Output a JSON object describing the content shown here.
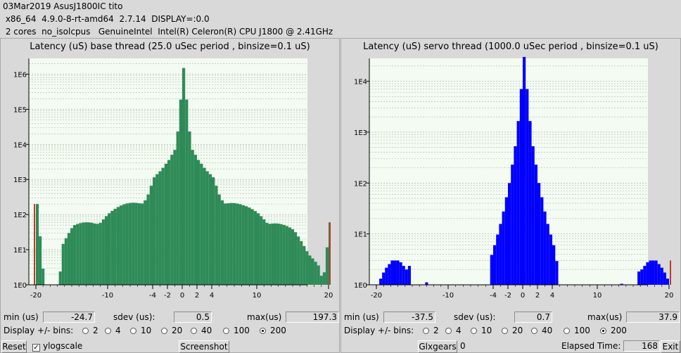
{
  "header": {
    "line1": "03Mar2019 AsusJ1800IC tito",
    "line2": " x86_64  4.9.0-8-rt-amd64  2.7.14  DISPLAY=:0.0",
    "line3": " 2 cores  no_isolcpus   GenuineIntel  Intel(R) Celeron(R) CPU J1800 @ 2.41GHz"
  },
  "base": {
    "title": "Latency (uS) base thread (25.0 uSec period , binsize=0.1 uS)",
    "min_label": "min (us)",
    "min": "-24.7",
    "sdev_label": "sdev (us):",
    "sdev": "0.5",
    "max_label": "max(us)",
    "max": "197.3",
    "bins_label": "Display +/- bins:",
    "bins": [
      "2",
      "4",
      "10",
      "20",
      "40",
      "100",
      "200"
    ],
    "selected": "200",
    "color": "#2e8b57"
  },
  "servo": {
    "title": "Latency (uS) servo thread (1000.0 uSec period , binsize=0.1 uS)",
    "min_label": "min (us)",
    "min": "-37.5",
    "sdev_label": "sdev (us):",
    "sdev": "0.7",
    "max_label": "max(us)",
    "max": "37.9",
    "bins_label": "Display +/- bins:",
    "bins": [
      "2",
      "4",
      "10",
      "20",
      "40",
      "100",
      "200"
    ],
    "selected": "200",
    "color": "#0000ff"
  },
  "footer": {
    "reset": "Reset",
    "ylogscale": "ylogscale",
    "screenshot": "Screenshot",
    "glxgears": "Glxgears",
    "glxgears_value": "0",
    "elapsed_label": "Elapsed Time:",
    "elapsed": "168",
    "exit": "Exit"
  },
  "chart_data": [
    {
      "type": "bar",
      "title": "Latency (uS) base thread (25.0 uSec period , binsize=0.1 uS)",
      "x_ticks": [
        "-20",
        "-10",
        "-4",
        "-2",
        "0",
        "2",
        "4",
        "10",
        "20"
      ],
      "y_ticks": [
        "1E0",
        "1E1",
        "1E2",
        "1E3",
        "1E4",
        "1E5",
        "1E6"
      ],
      "xlim": [
        -20,
        20
      ],
      "yscale": "log",
      "points": [
        [
          -20,
          200
        ],
        [
          -19,
          1
        ],
        [
          -17,
          1
        ],
        [
          -16.5,
          15
        ],
        [
          -15,
          40
        ],
        [
          -12,
          60
        ],
        [
          -10,
          100
        ],
        [
          -8,
          160
        ],
        [
          -6,
          250
        ],
        [
          -5,
          300
        ],
        [
          -4,
          1000
        ],
        [
          -3,
          1500
        ],
        [
          -2,
          3000
        ],
        [
          -1,
          8000
        ],
        [
          0,
          2000000
        ],
        [
          1,
          8000
        ],
        [
          2,
          3000
        ],
        [
          3,
          1500
        ],
        [
          4,
          1000
        ],
        [
          5,
          300
        ],
        [
          6,
          250
        ],
        [
          8,
          150
        ],
        [
          10,
          100
        ],
        [
          12,
          60
        ],
        [
          15,
          30
        ],
        [
          17,
          10
        ],
        [
          18.5,
          3
        ],
        [
          19,
          1
        ],
        [
          20,
          60
        ]
      ]
    },
    {
      "type": "bar",
      "title": "Latency (uS) servo thread (1000.0 uSec period , binsize=0.1 uS)",
      "x_ticks": [
        "-20",
        "-10",
        "-4",
        "-2",
        "0",
        "2",
        "4",
        "10",
        "20"
      ],
      "y_ticks": [
        "1E0",
        "1E1",
        "1E2",
        "1E3",
        "1E4"
      ],
      "xlim": [
        -20,
        20
      ],
      "yscale": "log",
      "points": [
        [
          -20,
          1
        ],
        [
          -19,
          2
        ],
        [
          -18,
          3
        ],
        [
          -17,
          3
        ],
        [
          -16,
          2
        ],
        [
          -15,
          3
        ],
        [
          -13,
          1
        ],
        [
          -5,
          2
        ],
        [
          -4,
          6
        ],
        [
          -3,
          20
        ],
        [
          -2,
          100
        ],
        [
          -1,
          800
        ],
        [
          0,
          30000
        ],
        [
          1,
          800
        ],
        [
          2,
          100
        ],
        [
          3,
          20
        ],
        [
          4,
          6
        ],
        [
          5,
          1
        ],
        [
          13,
          1
        ],
        [
          16,
          2
        ],
        [
          17,
          3
        ],
        [
          18,
          3
        ],
        [
          19,
          2
        ],
        [
          20,
          1
        ]
      ]
    }
  ]
}
